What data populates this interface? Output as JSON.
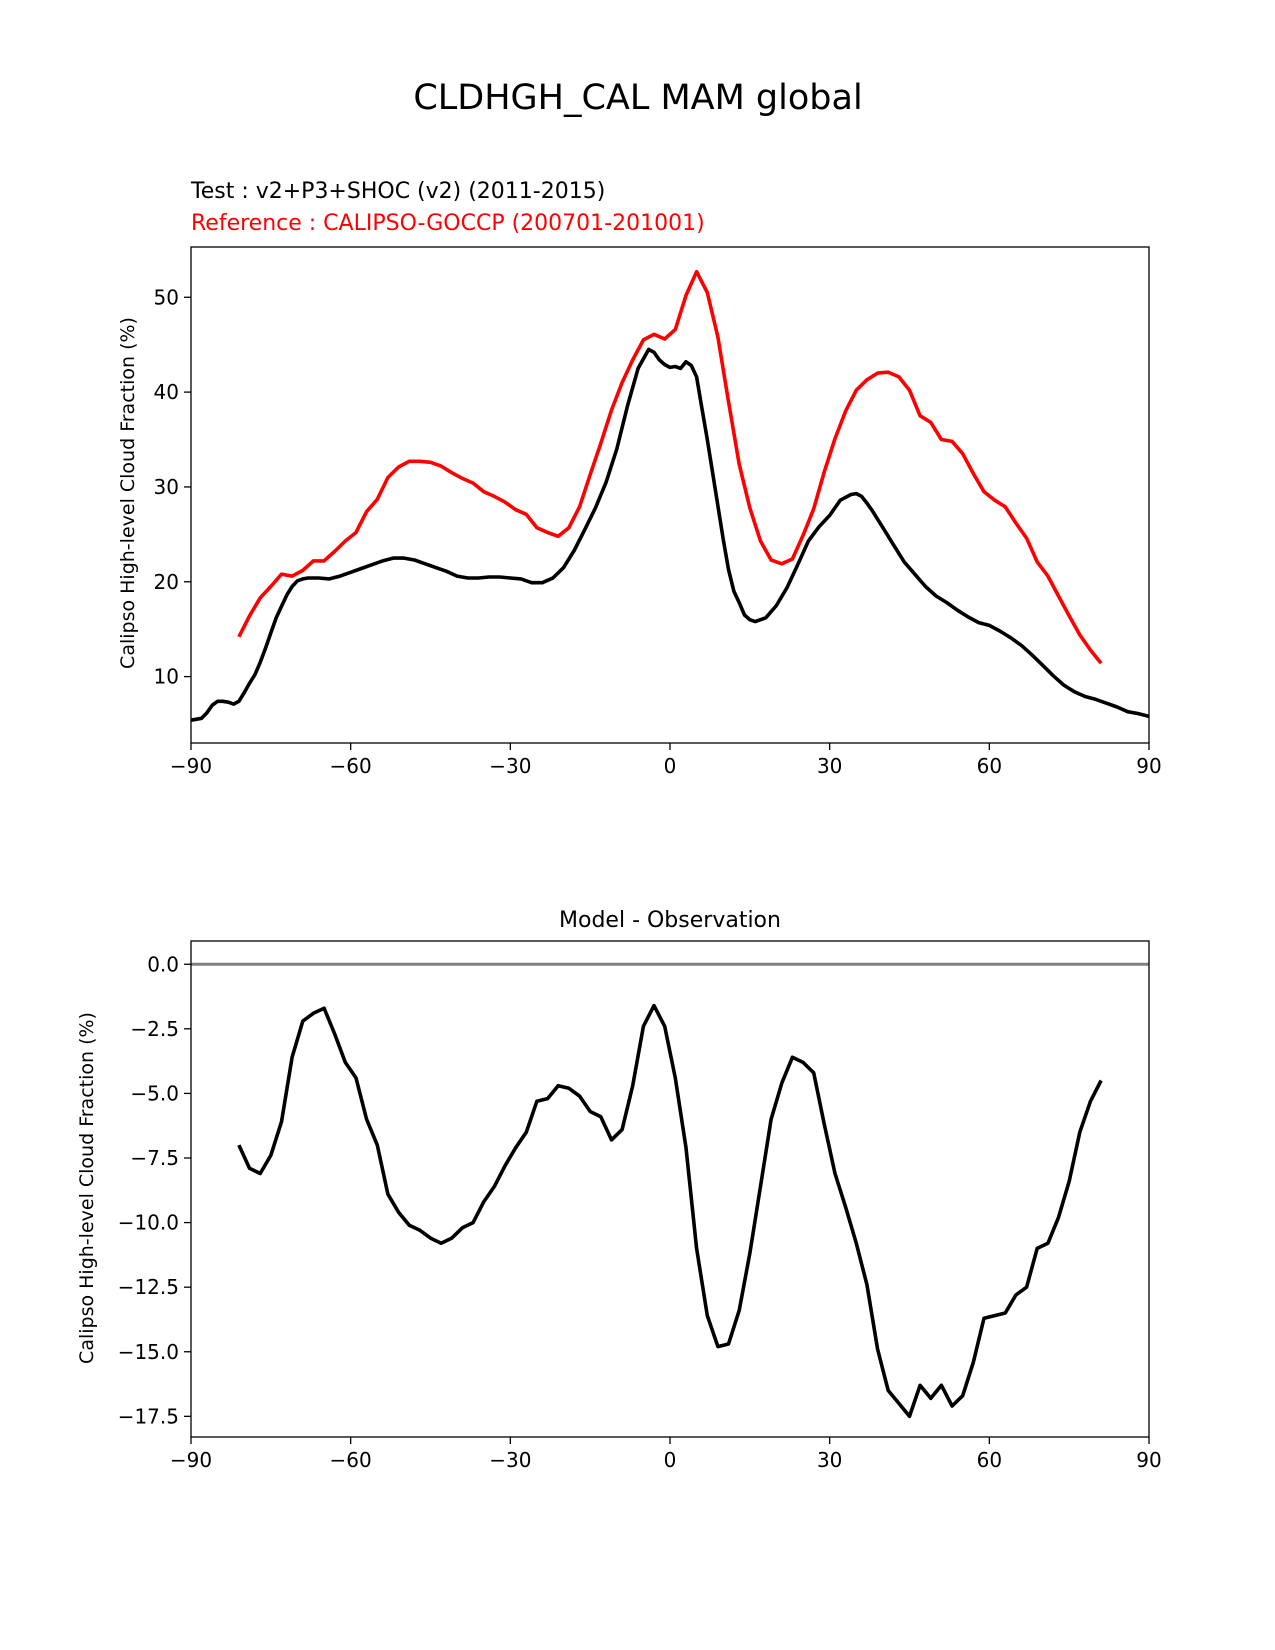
{
  "figure": {
    "title": "CLDHGH_CAL MAM global"
  },
  "chart_data": [
    {
      "type": "line",
      "test_label": "Test : v2+P3+SHOC (v2) (2011-2015)",
      "reference_label": "Reference : CALIPSO-GOCCP (200701-201001)",
      "xlabel": "",
      "ylabel": "Calipso High-level Cloud Fraction (%)",
      "xlim": [
        -90,
        90
      ],
      "ylim": [
        3.0,
        55.3
      ],
      "xticks": [
        -90,
        -60,
        -30,
        0,
        30,
        60,
        90
      ],
      "xtick_labels": [
        "−90",
        "−60",
        "−30",
        "0",
        "30",
        "60",
        "90"
      ],
      "yticks": [
        10,
        20,
        30,
        40,
        50
      ],
      "ytick_labels": [
        "10",
        "20",
        "30",
        "40",
        "50"
      ],
      "colors": {
        "test": "#000000",
        "reference": "#ff0000"
      },
      "series": [
        {
          "name": "Test",
          "x": [
            -90,
            -88,
            -87,
            -86,
            -85,
            -84,
            -83,
            -82,
            -81,
            -80,
            -79,
            -78,
            -77,
            -76,
            -75,
            -74,
            -73,
            -72,
            -71,
            -70,
            -69,
            -68,
            -66,
            -64,
            -62,
            -60,
            -58,
            -56,
            -54,
            -52,
            -50,
            -48,
            -46,
            -44,
            -42,
            -40,
            -38,
            -36,
            -34,
            -32,
            -30,
            -28,
            -26,
            -24,
            -22,
            -20,
            -18,
            -16,
            -14,
            -12,
            -10,
            -8,
            -6,
            -4,
            -3,
            -2,
            -1,
            0,
            1,
            2,
            3,
            4,
            5,
            6,
            7,
            8,
            9,
            10,
            11,
            12,
            13,
            14,
            15,
            16,
            18,
            20,
            22,
            24,
            26,
            28,
            30,
            32,
            34,
            35,
            36,
            37,
            38,
            40,
            42,
            44,
            46,
            48,
            50,
            52,
            54,
            56,
            58,
            60,
            62,
            64,
            66,
            68,
            70,
            72,
            74,
            76,
            78,
            80,
            82,
            84,
            86,
            88,
            90
          ],
          "values": [
            5.4,
            5.6,
            6.2,
            7.0,
            7.4,
            7.4,
            7.3,
            7.1,
            7.4,
            8.3,
            9.3,
            10.2,
            11.5,
            13.0,
            14.6,
            16.2,
            17.4,
            18.6,
            19.5,
            20.1,
            20.3,
            20.4,
            20.4,
            20.3,
            20.6,
            21.0,
            21.4,
            21.8,
            22.2,
            22.5,
            22.5,
            22.3,
            21.9,
            21.5,
            21.1,
            20.6,
            20.4,
            20.4,
            20.5,
            20.5,
            20.4,
            20.3,
            19.9,
            19.9,
            20.4,
            21.5,
            23.3,
            25.5,
            27.8,
            30.5,
            34.0,
            38.5,
            42.5,
            44.5,
            44.2,
            43.4,
            42.9,
            42.6,
            42.7,
            42.5,
            43.2,
            42.8,
            41.6,
            38.3,
            35.0,
            31.5,
            28.0,
            24.5,
            21.3,
            19.0,
            17.8,
            16.5,
            16.0,
            15.8,
            16.2,
            17.5,
            19.4,
            21.8,
            24.3,
            25.8,
            27.0,
            28.6,
            29.2,
            29.3,
            29.0,
            28.3,
            27.5,
            25.7,
            23.9,
            22.1,
            20.8,
            19.5,
            18.5,
            17.8,
            17.0,
            16.3,
            15.7,
            15.4,
            14.8,
            14.1,
            13.3,
            12.3,
            11.2,
            10.1,
            9.1,
            8.4,
            7.9,
            7.6,
            7.2,
            6.8,
            6.3,
            6.1,
            5.8
          ]
        },
        {
          "name": "Reference",
          "x": [
            -81,
            -79,
            -77,
            -75,
            -73,
            -71,
            -69,
            -67,
            -65,
            -63,
            -61,
            -59,
            -57,
            -55,
            -53,
            -51,
            -49,
            -47,
            -45,
            -43,
            -41,
            -39,
            -37,
            -35,
            -33,
            -31,
            -29,
            -27,
            -25,
            -23,
            -21,
            -19,
            -17,
            -15,
            -13,
            -11,
            -9,
            -7,
            -5,
            -3,
            -1,
            1,
            3,
            5,
            7,
            9,
            11,
            13,
            15,
            17,
            19,
            21,
            23,
            25,
            27,
            29,
            31,
            33,
            35,
            37,
            39,
            41,
            43,
            45,
            47,
            49,
            51,
            53,
            55,
            57,
            59,
            61,
            63,
            65,
            67,
            69,
            71,
            73,
            75,
            77,
            79,
            81
          ],
          "values": [
            14.2,
            16.4,
            18.3,
            19.5,
            20.8,
            20.6,
            21.2,
            22.2,
            22.2,
            23.2,
            24.3,
            25.2,
            27.4,
            28.7,
            31.0,
            32.1,
            32.7,
            32.7,
            32.6,
            32.2,
            31.5,
            30.9,
            30.4,
            29.5,
            29.0,
            28.4,
            27.6,
            27.1,
            25.7,
            25.2,
            24.8,
            25.7,
            27.9,
            31.3,
            34.6,
            38.1,
            41.0,
            43.4,
            45.5,
            46.1,
            45.6,
            46.6,
            50.2,
            52.7,
            50.5,
            45.8,
            39.0,
            32.4,
            27.8,
            24.3,
            22.3,
            21.9,
            22.4,
            24.9,
            27.7,
            31.6,
            35.1,
            38.0,
            40.2,
            41.3,
            42.0,
            42.1,
            41.6,
            40.2,
            37.5,
            36.8,
            35.0,
            34.8,
            33.5,
            31.4,
            29.5,
            28.6,
            27.9,
            26.2,
            24.6,
            22.1,
            20.6,
            18.5,
            16.4,
            14.4,
            12.8,
            11.4
          ]
        }
      ]
    },
    {
      "type": "line",
      "title": "Model - Observation",
      "xlabel": "",
      "ylabel": "Calipso High-level Cloud Fraction (%)",
      "xlim": [
        -90,
        90
      ],
      "ylim": [
        -18.3,
        0.9
      ],
      "xticks": [
        -90,
        -60,
        -30,
        0,
        30,
        60,
        90
      ],
      "xtick_labels": [
        "−90",
        "−60",
        "−30",
        "0",
        "30",
        "60",
        "90"
      ],
      "yticks": [
        0,
        -2.5,
        -5,
        -7.5,
        -10,
        -12.5,
        -15,
        -17.5
      ],
      "ytick_labels": [
        "0.0",
        "−2.5",
        "−5.0",
        "−7.5",
        "−10.0",
        "−12.5",
        "−15.0",
        "−17.5"
      ],
      "zero_line": 0,
      "colors": {
        "difference": "#000000",
        "zero_line": "#808080"
      },
      "series": [
        {
          "name": "Model - Observation",
          "x": [
            -81,
            -79,
            -77,
            -75,
            -73,
            -71,
            -69,
            -67,
            -65,
            -63,
            -61,
            -59,
            -57,
            -55,
            -53,
            -51,
            -49,
            -47,
            -45,
            -43,
            -41,
            -39,
            -37,
            -35,
            -33,
            -31,
            -29,
            -27,
            -25,
            -23,
            -21,
            -19,
            -17,
            -15,
            -13,
            -11,
            -9,
            -7,
            -5,
            -3,
            -1,
            1,
            3,
            5,
            7,
            9,
            11,
            13,
            15,
            17,
            19,
            21,
            23,
            25,
            27,
            29,
            31,
            33,
            35,
            37,
            39,
            41,
            43,
            45,
            47,
            49,
            51,
            53,
            55,
            57,
            59,
            61,
            63,
            65,
            67,
            69,
            71,
            73,
            75,
            77,
            79,
            81
          ],
          "values": [
            -7.0,
            -7.9,
            -8.1,
            -7.4,
            -6.1,
            -3.6,
            -2.2,
            -1.9,
            -1.7,
            -2.7,
            -3.8,
            -4.4,
            -6.0,
            -7.0,
            -8.9,
            -9.6,
            -10.1,
            -10.3,
            -10.6,
            -10.8,
            -10.6,
            -10.2,
            -10.0,
            -9.2,
            -8.6,
            -7.8,
            -7.1,
            -6.5,
            -5.3,
            -5.2,
            -4.7,
            -4.8,
            -5.1,
            -5.7,
            -5.9,
            -6.8,
            -6.4,
            -4.7,
            -2.4,
            -1.6,
            -2.4,
            -4.4,
            -7.1,
            -11.0,
            -13.6,
            -14.8,
            -14.7,
            -13.4,
            -11.2,
            -8.6,
            -6.0,
            -4.6,
            -3.6,
            -3.8,
            -4.2,
            -6.2,
            -8.1,
            -9.4,
            -10.8,
            -12.4,
            -14.9,
            -16.5,
            -17.0,
            -17.5,
            -16.3,
            -16.8,
            -16.3,
            -17.1,
            -16.7,
            -15.4,
            -13.7,
            -13.6,
            -13.5,
            -12.8,
            -12.5,
            -11.0,
            -10.8,
            -9.8,
            -8.4,
            -6.5,
            -5.3,
            -4.5
          ]
        }
      ]
    }
  ]
}
